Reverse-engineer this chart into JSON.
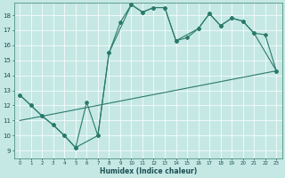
{
  "xlabel": "Humidex (Indice chaleur)",
  "bg_color": "#c5e8e5",
  "line_color": "#2a7a6a",
  "xlim": [
    -0.5,
    23.5
  ],
  "ylim": [
    8.5,
    18.8
  ],
  "yticks": [
    9,
    10,
    11,
    12,
    13,
    14,
    15,
    16,
    17,
    18
  ],
  "xticks": [
    0,
    1,
    2,
    3,
    4,
    5,
    6,
    7,
    8,
    9,
    10,
    11,
    12,
    13,
    14,
    15,
    16,
    17,
    18,
    19,
    20,
    21,
    22,
    23
  ],
  "line1_x": [
    0,
    1,
    2,
    3,
    4,
    5,
    6,
    7,
    8,
    9,
    10,
    11,
    12,
    13,
    14,
    15,
    16,
    17,
    18,
    19,
    20,
    21,
    22,
    23
  ],
  "line1_y": [
    12.7,
    12.0,
    11.3,
    10.7,
    10.0,
    9.2,
    12.2,
    10.0,
    15.5,
    17.5,
    18.7,
    18.2,
    18.5,
    18.5,
    16.3,
    16.5,
    17.1,
    18.1,
    17.3,
    17.8,
    17.6,
    16.8,
    16.7,
    14.3
  ],
  "line2_x": [
    0,
    1,
    2,
    3,
    4,
    5,
    7,
    8,
    10,
    11,
    12,
    13,
    14,
    16,
    17,
    18,
    19,
    20,
    21,
    23
  ],
  "line2_y": [
    12.7,
    12.0,
    11.3,
    10.7,
    10.0,
    9.2,
    10.0,
    15.5,
    18.7,
    18.2,
    18.5,
    18.5,
    16.3,
    17.1,
    18.1,
    17.3,
    17.8,
    17.6,
    16.8,
    14.3
  ],
  "line3_x": [
    0,
    23
  ],
  "line3_y": [
    11.0,
    14.3
  ]
}
